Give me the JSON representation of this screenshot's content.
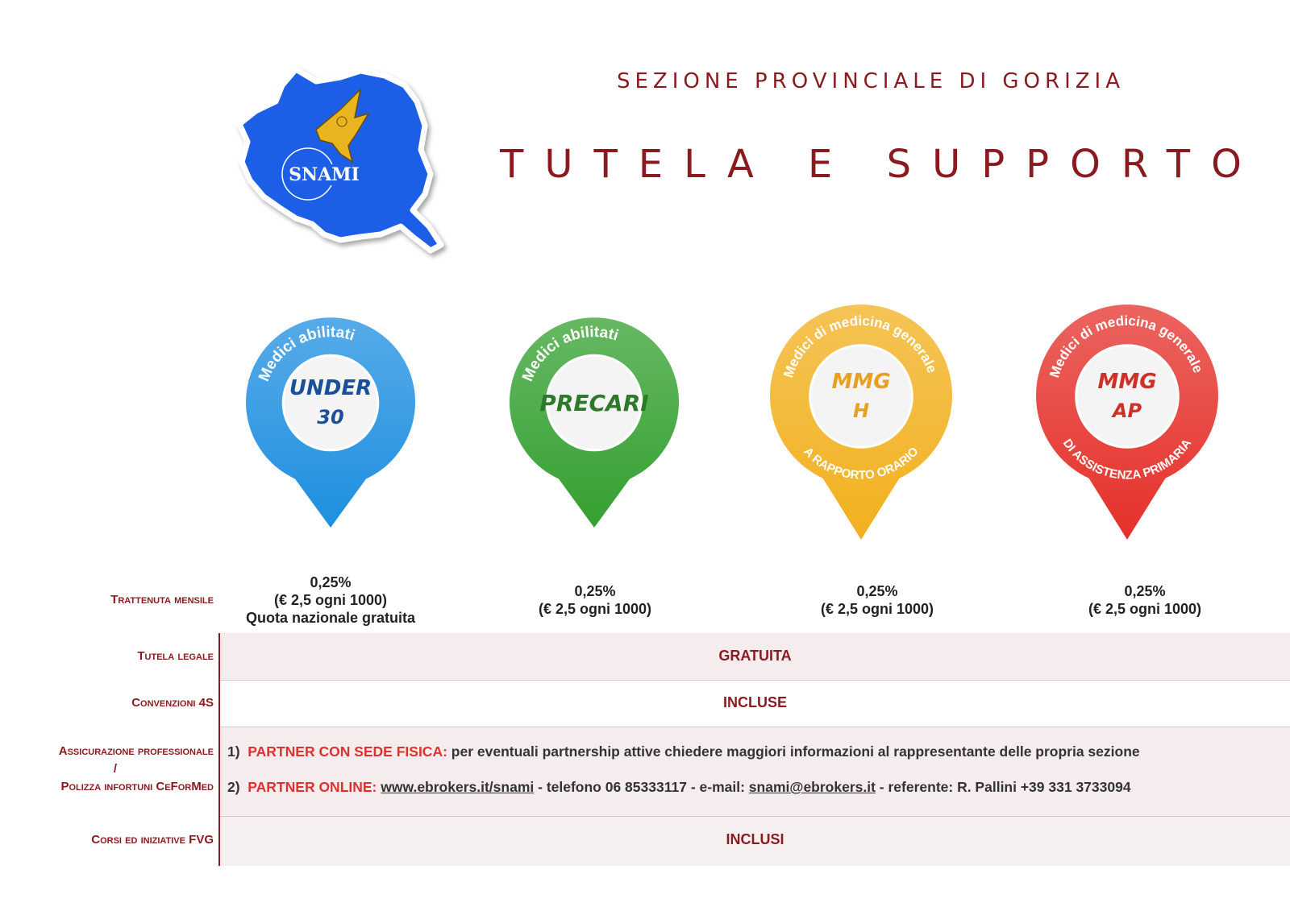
{
  "header": {
    "section": "SEZIONE PROVINCIALE DI GORIZIA",
    "title": "TUTELA E SUPPORTO",
    "logo_text": "SNAMI"
  },
  "categories": [
    {
      "top": "Medici abilitati",
      "main1": "UNDER",
      "main2": "30",
      "bottom": "",
      "color": "#1e8fe0"
    },
    {
      "top": "Medici abilitati",
      "main1": "PRECARI",
      "main2": "",
      "bottom": "",
      "color": "#34a030"
    },
    {
      "top": "Medici di medicina generale",
      "main1": "MMG",
      "main2": "H",
      "bottom": "A RAPPORTO ORARIO",
      "color": "#f2b01e"
    },
    {
      "top": "Medici di medicina generale",
      "main1": "MMG",
      "main2": "AP",
      "bottom": "DI ASSISTENZA PRIMARIA",
      "color": "#e5302a"
    }
  ],
  "rows": {
    "trattenuta": {
      "label": "Trattenuta mensile",
      "values": [
        {
          "l1": "0,25%",
          "l2": "(€ 2,5 ogni 1000)",
          "l3": "Quota nazionale gratuita"
        },
        {
          "l1": "0,25%",
          "l2": "(€ 2,5 ogni 1000)",
          "l3": ""
        },
        {
          "l1": "0,25%",
          "l2": "(€ 2,5 ogni 1000)",
          "l3": ""
        },
        {
          "l1": "0,25%",
          "l2": "(€ 2,5 ogni 1000)",
          "l3": ""
        }
      ]
    },
    "tutela": {
      "label": "Tutela legale",
      "value": "GRATUITA"
    },
    "convenzioni": {
      "label": "Convenzioni 4S",
      "value": "INCLUSE"
    },
    "assicurazione": {
      "label1": "Assicurazione professionale",
      "label_sep": "/",
      "label2": "Polizza infortuni CeForMed",
      "item1_num": "1)",
      "item1_head": "PARTNER CON SEDE FISICA:",
      "item1_text": "per eventuali partnership attive chiedere maggiori informazioni al rappresentante delle propria sezione",
      "item2_num": "2)",
      "item2_head": "PARTNER ONLINE:",
      "item2_link": "www.ebrokers.it/snami",
      "item2_phone": "- telefono 06 85333117 - e-mail:",
      "item2_email": "snami@ebrokers.it",
      "item2_ref": "- referente: R. Pallini +39 331 3733094"
    },
    "corsi": {
      "label": "Corsi ed iniziative FVG",
      "value": "INCLUSI"
    }
  }
}
